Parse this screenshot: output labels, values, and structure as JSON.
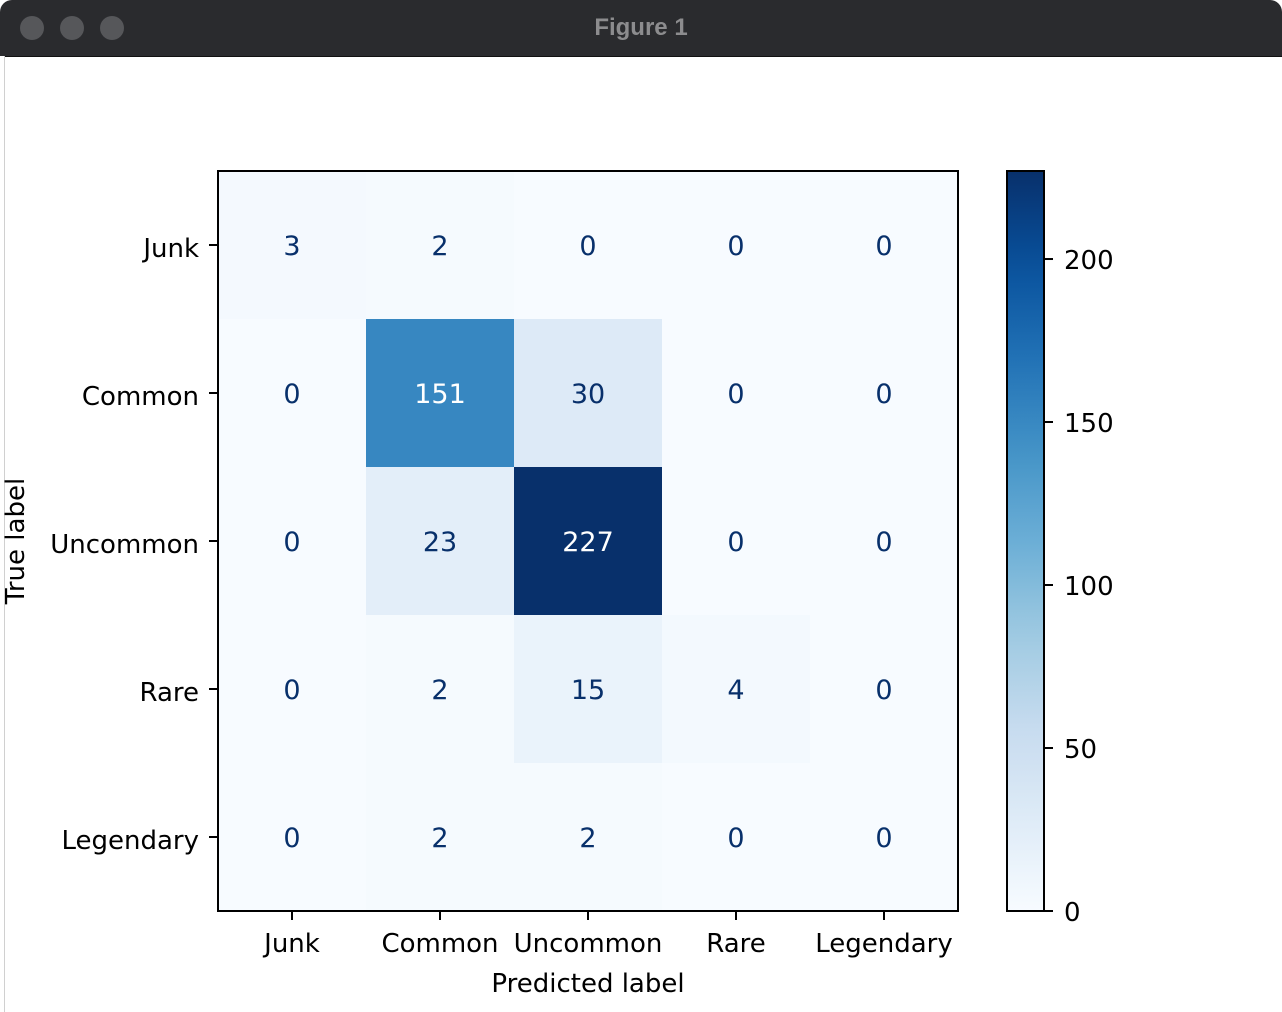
{
  "window": {
    "title": "Figure 1"
  },
  "chart_data": {
    "type": "heatmap",
    "title": "",
    "xlabel": "Predicted label",
    "ylabel": "True label",
    "x_categories": [
      "Junk",
      "Common",
      "Uncommon",
      "Rare",
      "Legendary"
    ],
    "y_categories": [
      "Junk",
      "Common",
      "Uncommon",
      "Rare",
      "Legendary"
    ],
    "matrix": [
      [
        3,
        2,
        0,
        0,
        0
      ],
      [
        0,
        151,
        30,
        0,
        0
      ],
      [
        0,
        23,
        227,
        0,
        0
      ],
      [
        0,
        2,
        15,
        4,
        0
      ],
      [
        0,
        2,
        2,
        0,
        0
      ]
    ],
    "colormap": "Blues",
    "colorbar": {
      "range": [
        0,
        227
      ],
      "ticks": [
        0,
        50,
        100,
        150,
        200
      ]
    },
    "grid": false
  }
}
